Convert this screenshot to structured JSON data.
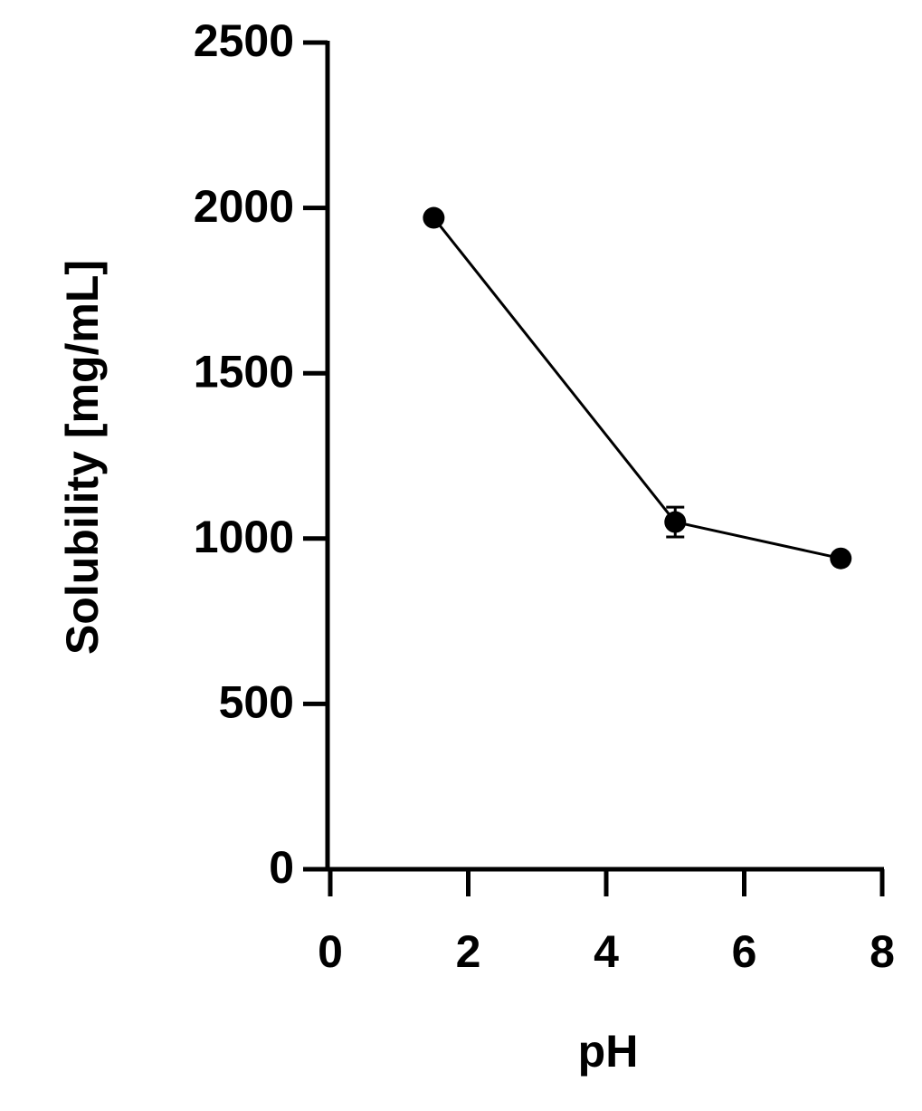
{
  "chart_data": {
    "type": "line",
    "x_label": "pH",
    "y_label": "Solubility [mg/mL]",
    "series": [
      {
        "color": "#000000",
        "x": [
          1.5,
          5,
          7.4
        ],
        "values": [
          1970,
          1050,
          940
        ],
        "errors": [
          null,
          45,
          null
        ]
      }
    ],
    "xlim": [
      0,
      8
    ],
    "xticks": [
      0,
      2,
      4,
      6,
      8
    ],
    "ylim": [
      0,
      2500
    ],
    "yticks": [
      0,
      500,
      1000,
      1500,
      2000,
      2500
    ],
    "grid": false
  }
}
